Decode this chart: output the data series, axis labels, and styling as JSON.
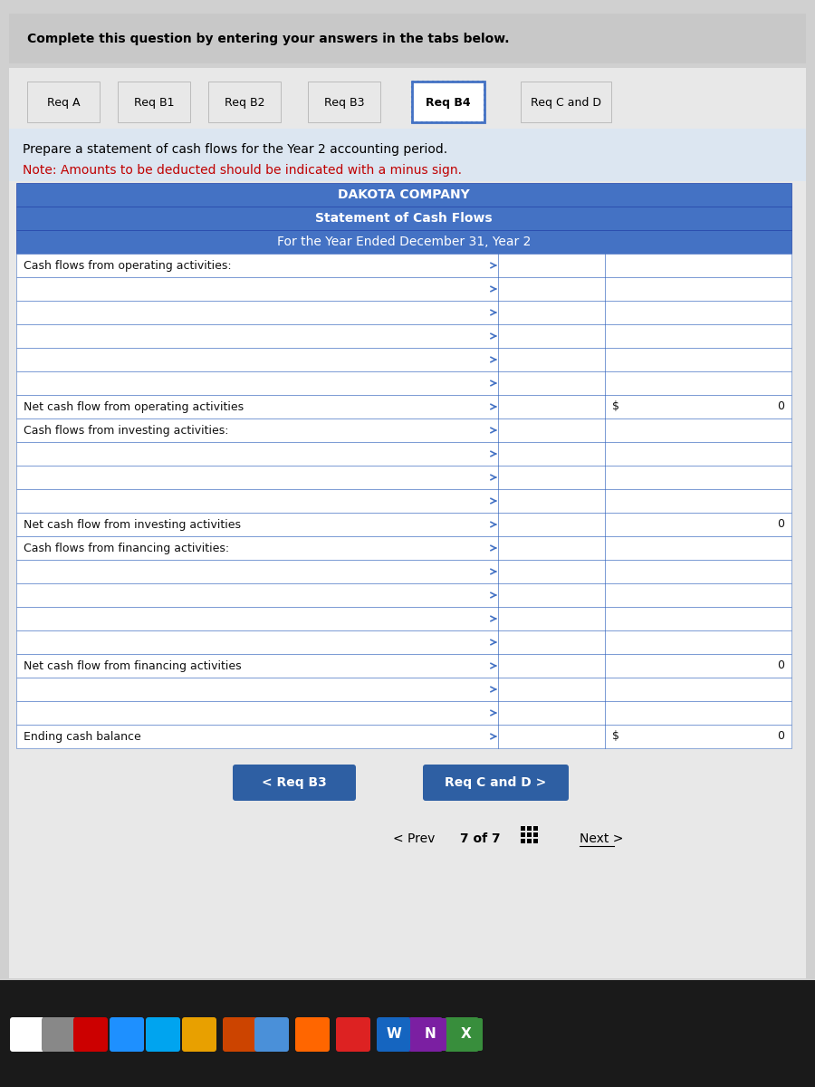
{
  "bg_color": "#d0d0d0",
  "page_bg": "#e8e8e8",
  "white": "#ffffff",
  "header_blue": "#4472C4",
  "light_blue_tab": "#dce6f1",
  "dark_blue_btn": "#2E5FA3",
  "red_text": "#C00000",
  "black": "#000000",
  "header_text": "Complete this question by entering your answers in the tabs below.",
  "tabs": [
    "Req A",
    "Req B1",
    "Req B2",
    "Req B3",
    "Req B4",
    "Req C and D"
  ],
  "active_tab": "Req B4",
  "instruction_line1": "Prepare a statement of cash flows for the Year 2 accounting period.",
  "instruction_line2": "Note: Amounts to be deducted should be indicated with a minus sign.",
  "company_name": "DAKOTA COMPANY",
  "statement_title": "Statement of Cash Flows",
  "period": "For the Year Ended December 31, Year 2",
  "section1_label": "Cash flows from operating activities:",
  "section1_rows": 5,
  "net_operating_label": "Net cash flow from operating activities",
  "net_operating_dollar": "$",
  "net_operating_value": "0",
  "section2_label": "Cash flows from investing activities:",
  "section2_rows": 3,
  "net_investing_label": "Net cash flow from investing activities",
  "net_investing_value": "0",
  "section3_label": "Cash flows from financing activities:",
  "section3_rows": 4,
  "net_financing_label": "Net cash flow from financing activities",
  "net_financing_value": "0",
  "ending_rows": 2,
  "ending_label": "Ending cash balance",
  "ending_dollar": "$",
  "ending_value": "0",
  "btn_left": "< Req B3",
  "btn_right": "Req C and D >",
  "nav_prev": "< Prev",
  "nav_page": "7 of 7",
  "nav_next": "Next >",
  "taskbar_bg": "#1a1a1a"
}
